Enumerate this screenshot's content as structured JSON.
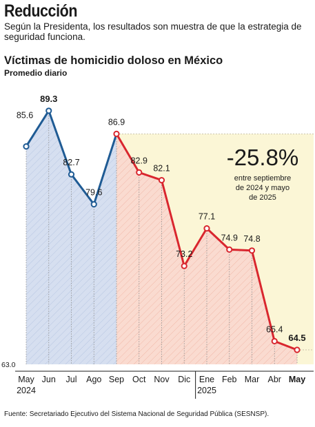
{
  "headline": "Reducción",
  "subheadline": "Según la Presidenta, los resultados son muestra de que la estrategia de seguridad funciona.",
  "source": "Fuente: Secretariado Ejecutivo del Sistema Nacional de Seguridad Pública (SESNSP).",
  "colors": {
    "before": "#1f5b94",
    "before_fill": "#d6dff0",
    "after": "#d9262e",
    "after_fill": "#fadbd0",
    "highlight_bg": "#fbf6d6"
  },
  "chart_data": {
    "type": "line",
    "title": "Víctimas de homicidio doloso en México",
    "subtitle": "Promedio diario",
    "categories": [
      "May",
      "Jun",
      "Jul",
      "Ago",
      "Sep",
      "Oct",
      "Nov",
      "Dic",
      "Ene",
      "Feb",
      "Mar",
      "Abr",
      "May"
    ],
    "year_labels": [
      {
        "index": 0,
        "label": "2024"
      },
      {
        "index": 8,
        "label": "2025"
      }
    ],
    "series": [
      {
        "values": [
          85.6,
          89.3,
          82.7,
          79.6,
          86.9,
          82.9,
          82.1,
          73.2,
          77.1,
          74.9,
          74.8,
          65.4,
          64.5
        ]
      }
    ],
    "value_labels": [
      "85.6",
      "89.3",
      "82.7",
      "79.6",
      "86.9",
      "82.9",
      "82.1",
      "73.2",
      "77.1",
      "74.9",
      "74.8",
      "65.4",
      "64.5"
    ],
    "bold_labels": [
      1,
      12
    ],
    "color_split_index": 4,
    "ylim": [
      63.0,
      90.5
    ],
    "y_baseline_label": "63.0",
    "annotation": {
      "value": "-25.8%",
      "text_lines": [
        "entre septiembre",
        "de 2024 y mayo",
        "de 2025"
      ]
    },
    "grid": false,
    "legend": "none"
  }
}
